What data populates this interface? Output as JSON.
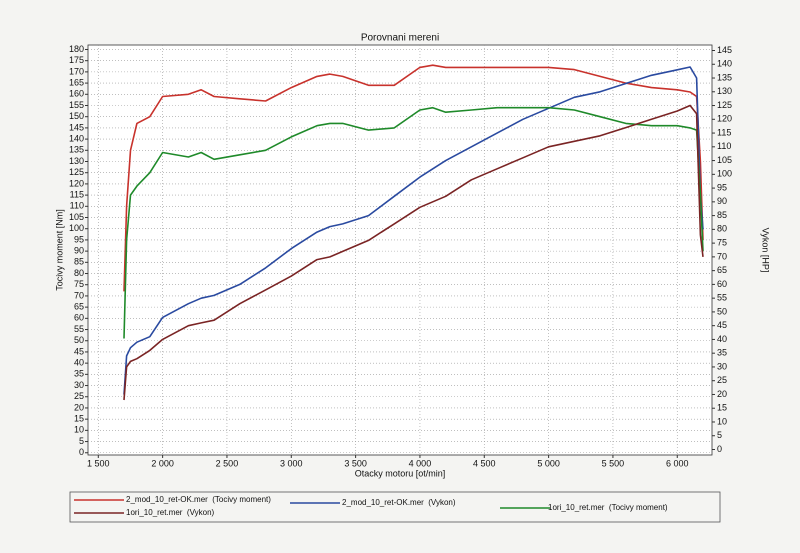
{
  "chart_data": {
    "type": "line",
    "title": "Porovnani mereni",
    "x_label": "Otacky motoru [ot/min]",
    "y_label": "Tocivy moment [Nm]",
    "y2_label": "Vykon [HP]",
    "x": [
      1700,
      1720,
      1750,
      1800,
      1900,
      2000,
      2200,
      2300,
      2400,
      2600,
      2800,
      3000,
      3200,
      3300,
      3400,
      3600,
      3800,
      4000,
      4100,
      4200,
      4400,
      4600,
      4800,
      5000,
      5200,
      5400,
      5600,
      5800,
      6000,
      6100,
      6150,
      6180,
      6200
    ],
    "series": [
      {
        "name": "2_mod_10_ret-OK.mer  (Tocivy moment)",
        "color": "#c8322c",
        "values": [
          72,
          110,
          135,
          147,
          150,
          159,
          160,
          162,
          159,
          158,
          157,
          163,
          168,
          169,
          168,
          164,
          164,
          172,
          173,
          172,
          172,
          172,
          172,
          172,
          171,
          168,
          165,
          163,
          162,
          161,
          159,
          130,
          95
        ]
      },
      {
        "name": "2_mod_10_ret-OK.mer  (Vykon)",
        "color": "#2a4aa0",
        "axis": "y2",
        "values": [
          20,
          34,
          37,
          39,
          41,
          48,
          53,
          55,
          56,
          60,
          66,
          73,
          79,
          81,
          82,
          85,
          92,
          99,
          102,
          105,
          110,
          115,
          120,
          124,
          128,
          130,
          133,
          136,
          138,
          139,
          135,
          92,
          80
        ]
      },
      {
        "name": "1ori_10_ret.mer  (Tocivy moment)",
        "color": "#1f8a2a",
        "values": [
          51,
          95,
          115,
          119,
          125,
          134,
          132,
          134,
          131,
          133,
          135,
          141,
          146,
          147,
          147,
          144,
          145,
          153,
          154,
          152,
          153,
          154,
          154,
          154,
          153,
          150,
          147,
          146,
          146,
          145,
          144,
          115,
          90
        ]
      },
      {
        "name": "1ori_10_ret.mer  (Vykon)",
        "color": "#7a2424",
        "axis": "y2",
        "values": [
          18,
          30,
          32,
          33,
          36,
          40,
          45,
          46,
          47,
          53,
          58,
          63,
          69,
          70,
          72,
          76,
          82,
          88,
          90,
          92,
          98,
          102,
          106,
          110,
          112,
          114,
          117,
          120,
          123,
          125,
          122,
          78,
          70
        ]
      }
    ],
    "xlim": [
      1420,
      6270
    ],
    "xticks": [
      {
        "value": 1500,
        "label": "1 500"
      },
      {
        "value": 2000,
        "label": "2 000"
      },
      {
        "value": 2500,
        "label": "2 500"
      },
      {
        "value": 3000,
        "label": "3 000"
      },
      {
        "value": 3500,
        "label": "3 500"
      },
      {
        "value": 4000,
        "label": "4 000"
      },
      {
        "value": 4500,
        "label": "4 500"
      },
      {
        "value": 5000,
        "label": "5 000"
      },
      {
        "value": 5500,
        "label": "5 500"
      },
      {
        "value": 6000,
        "label": "6 000"
      }
    ],
    "ylim": [
      -1,
      182
    ],
    "yticks": [
      0,
      5,
      10,
      15,
      20,
      25,
      30,
      35,
      40,
      45,
      50,
      55,
      60,
      65,
      70,
      75,
      80,
      85,
      90,
      95,
      100,
      105,
      110,
      115,
      120,
      125,
      130,
      135,
      140,
      145,
      150,
      155,
      160,
      165,
      170,
      175,
      180
    ],
    "y2lim": [
      -2,
      147
    ],
    "y2ticks": [
      0,
      5,
      10,
      15,
      20,
      25,
      30,
      35,
      40,
      45,
      50,
      55,
      60,
      65,
      70,
      75,
      80,
      85,
      90,
      95,
      100,
      105,
      110,
      115,
      120,
      125,
      130,
      135,
      140,
      145
    ],
    "grid": true
  }
}
